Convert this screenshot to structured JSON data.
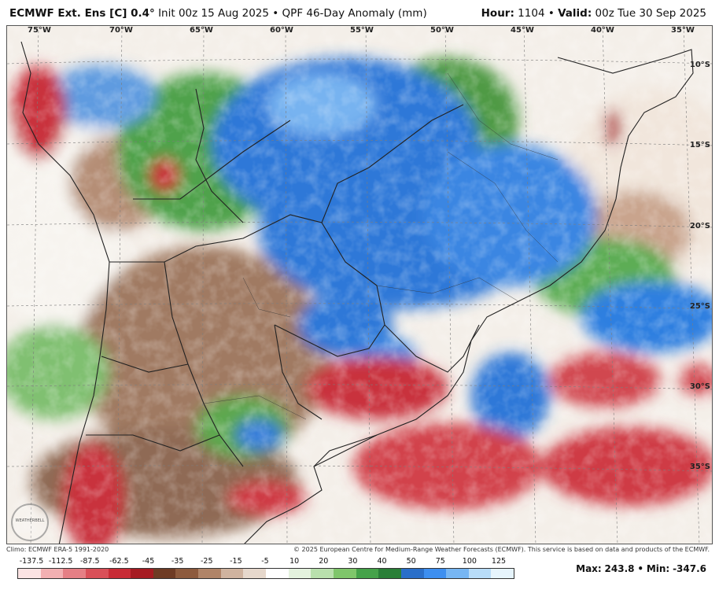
{
  "header": {
    "model": "ECMWF Ext. Ens [C] 0.4°",
    "init": "Init 00z 15 Aug 2025",
    "bullet": "•",
    "product": "QPF 46-Day Anomaly (mm)",
    "hour_label": "Hour:",
    "hour_value": "1104",
    "valid_label": "Valid:",
    "valid_value": "00z Tue 30 Sep 2025"
  },
  "lon_labels": [
    "75°W",
    "70°W",
    "65°W",
    "60°W",
    "55°W",
    "50°W",
    "45°W",
    "40°W",
    "35°W"
  ],
  "lat_labels": [
    "10°S",
    "15°S",
    "20°S",
    "25°S",
    "30°S",
    "35°S"
  ],
  "credits": {
    "climo": "Climo: ECMWF ERA-5 1991-2020",
    "copyright": "© 2025 European Centre for Medium-Range Weather Forecasts (ECMWF). This service is based on data and products of the ECMWF."
  },
  "logo_text": "WEATHERBELL",
  "colorbar": {
    "ticks": [
      "-137.5",
      "-112.5",
      "-87.5",
      "-62.5",
      "-45",
      "-35",
      "-25",
      "-15",
      "-5",
      "10",
      "20",
      "30",
      "40",
      "50",
      "75",
      "100",
      "125"
    ],
    "colors": [
      "#fbe3e3",
      "#f2b0b2",
      "#e57f85",
      "#d94f58",
      "#c82b36",
      "#a61b22",
      "#6e3b24",
      "#8d5a3d",
      "#b08468",
      "#cfb39f",
      "#e6d8cc",
      "#ffffff",
      "#e4f2de",
      "#b9e0ad",
      "#7fc66b",
      "#45a24a",
      "#2a7f38",
      "#2a6fc9",
      "#3d8ff0",
      "#77b6f3",
      "#b8dcf8",
      "#e6f4fc"
    ]
  },
  "stats": {
    "max_label": "Max:",
    "max_value": "243.8",
    "sep": "•",
    "min_label": "Min:",
    "min_value": "-347.6"
  }
}
